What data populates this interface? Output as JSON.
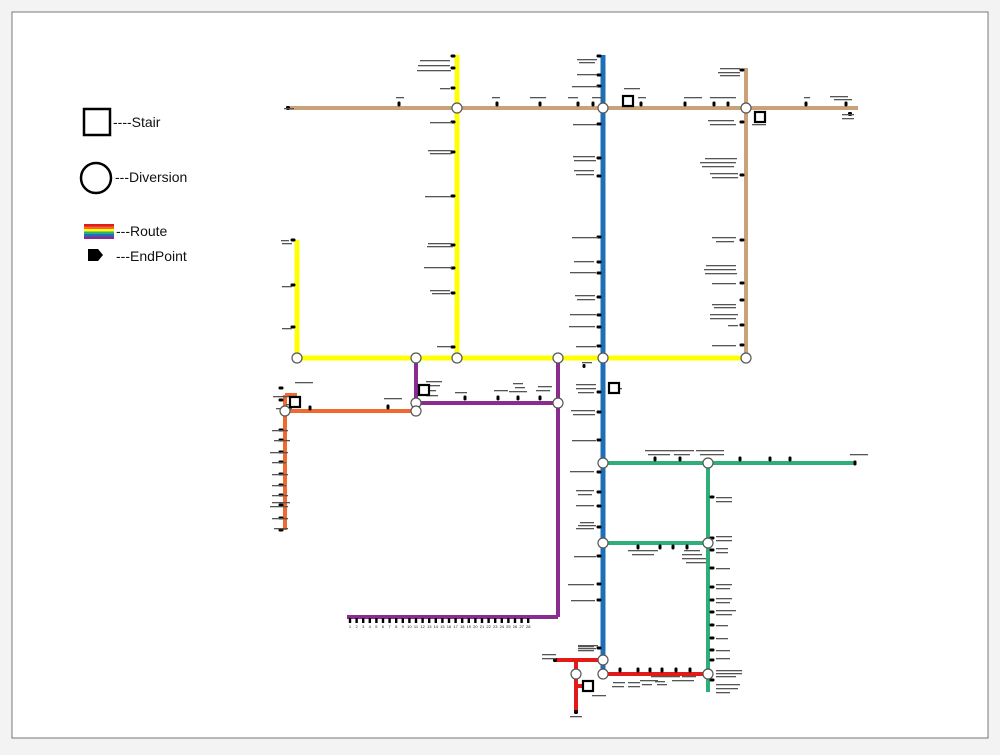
{
  "legend": {
    "stair_label": "----Stair",
    "diversion_label": "---Diversion",
    "route_label": "---Route",
    "endpoint_label": "---EndPoint"
  },
  "colors": {
    "brown": "#c9a27a",
    "yellow": "#ffff00",
    "blue": "#1f6fb8",
    "purple": "#8a2c8f",
    "orange": "#f0692e",
    "green": "#2fae78",
    "red": "#e31a1a",
    "route_stripes": [
      "#e31a1a",
      "#f0692e",
      "#ffff00",
      "#2fae78",
      "#1f6fb8",
      "#8a2c8f"
    ]
  },
  "route_numbers": [
    "1",
    "2",
    "3",
    "4",
    "5",
    "6",
    "7",
    "8",
    "9",
    "10",
    "11",
    "12",
    "13",
    "14",
    "15",
    "16",
    "17",
    "18",
    "19",
    "20",
    "21",
    "22",
    "23",
    "24",
    "25",
    "26",
    "27",
    "28"
  ]
}
